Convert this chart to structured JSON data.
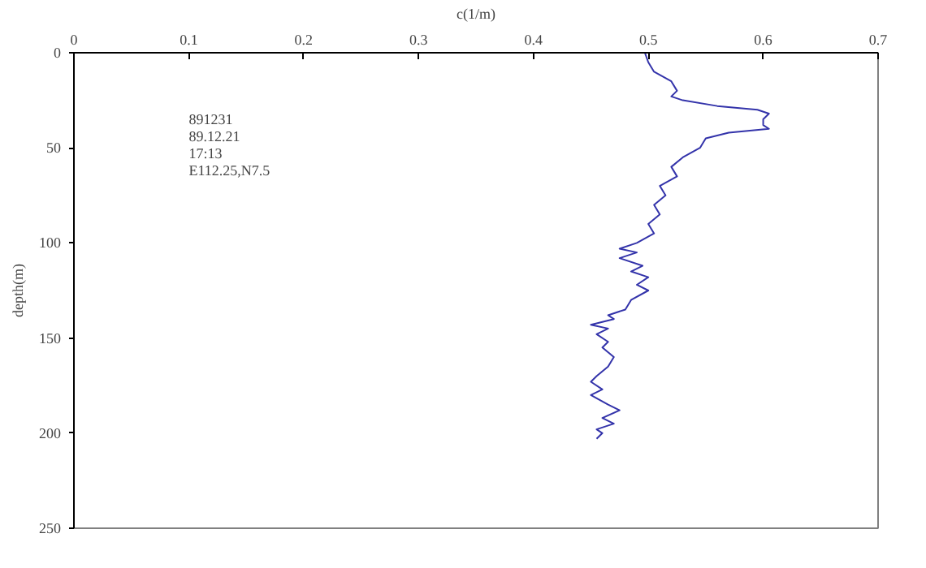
{
  "chart_data": {
    "type": "line",
    "xlabel": "c(1/m)",
    "ylabel": "depth(m)",
    "xlim": [
      0,
      0.7
    ],
    "xticks": [
      0,
      0.1,
      0.2,
      0.3,
      0.4,
      0.5,
      0.6,
      0.7
    ],
    "ylim": [
      250,
      0
    ],
    "yticks": [
      0,
      50,
      100,
      150,
      200,
      250
    ],
    "grid": false,
    "marker": "none",
    "line_style": "solid",
    "annotations": [
      "891231",
      "89.12.21",
      "17:13",
      "E112.25,N7.5"
    ],
    "series": [
      {
        "color": "#3333aa",
        "x": [
          0.497,
          0.5,
          0.505,
          0.52,
          0.525,
          0.52,
          0.53,
          0.56,
          0.595,
          0.605,
          0.6,
          0.6,
          0.605,
          0.57,
          0.55,
          0.545,
          0.53,
          0.52,
          0.525,
          0.51,
          0.515,
          0.505,
          0.51,
          0.5,
          0.505,
          0.49,
          0.475,
          0.49,
          0.475,
          0.495,
          0.485,
          0.5,
          0.49,
          0.5,
          0.485,
          0.48,
          0.465,
          0.47,
          0.45,
          0.465,
          0.455,
          0.465,
          0.46,
          0.47,
          0.465,
          0.455,
          0.45,
          0.46,
          0.45,
          0.465,
          0.475,
          0.46,
          0.47,
          0.455,
          0.46,
          0.455
        ],
        "values": [
          0,
          5,
          10,
          15,
          20,
          23,
          25,
          28,
          30,
          32,
          35,
          38,
          40,
          42,
          45,
          50,
          55,
          60,
          65,
          70,
          75,
          80,
          85,
          90,
          95,
          100,
          103,
          105,
          108,
          112,
          115,
          118,
          122,
          125,
          130,
          135,
          138,
          140,
          143,
          145,
          148,
          152,
          155,
          160,
          165,
          170,
          173,
          177,
          180,
          185,
          188,
          192,
          195,
          198,
          200,
          203
        ]
      }
    ]
  }
}
